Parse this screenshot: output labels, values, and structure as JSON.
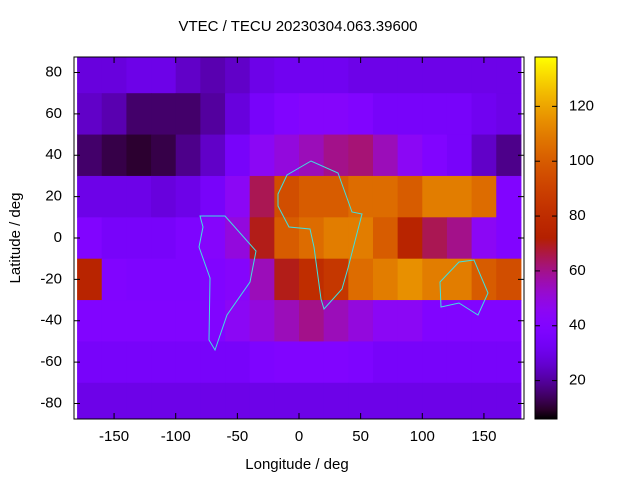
{
  "chart_data": {
    "type": "heatmap",
    "title": "VTEC / TECU 20230304.063.39600",
    "x_label": "Longitude / deg",
    "y_label": "Latitude / deg",
    "x": [
      -170,
      -150,
      -130,
      -110,
      -90,
      -70,
      -50,
      -30,
      -10,
      10,
      30,
      50,
      70,
      90,
      110,
      130,
      150,
      170
    ],
    "y": [
      80,
      60,
      40,
      20,
      0,
      -20,
      -40,
      -60,
      -80
    ],
    "z": [
      [
        28,
        28,
        30,
        30,
        25,
        22,
        25,
        30,
        32,
        32,
        32,
        30,
        30,
        30,
        30,
        30,
        30,
        30
      ],
      [
        25,
        22,
        15,
        15,
        15,
        20,
        28,
        35,
        40,
        42,
        42,
        40,
        35,
        35,
        35,
        35,
        32,
        30
      ],
      [
        15,
        12,
        10,
        12,
        18,
        25,
        35,
        45,
        50,
        55,
        60,
        62,
        55,
        45,
        40,
        35,
        25,
        18
      ],
      [
        30,
        30,
        30,
        28,
        30,
        35,
        45,
        65,
        95,
        100,
        100,
        105,
        105,
        100,
        110,
        110,
        105,
        40
      ],
      [
        40,
        35,
        35,
        35,
        38,
        42,
        50,
        70,
        100,
        105,
        110,
        110,
        100,
        75,
        65,
        60,
        45,
        40
      ],
      [
        75,
        40,
        38,
        38,
        38,
        40,
        42,
        55,
        70,
        80,
        85,
        105,
        110,
        115,
        110,
        110,
        100,
        95
      ],
      [
        40,
        40,
        40,
        40,
        40,
        40,
        45,
        50,
        55,
        60,
        55,
        50,
        45,
        45,
        40,
        40,
        40,
        40
      ],
      [
        35,
        35,
        35,
        35,
        35,
        35,
        35,
        38,
        40,
        40,
        40,
        38,
        35,
        35,
        35,
        35,
        35,
        35
      ],
      [
        30,
        30,
        30,
        30,
        30,
        30,
        30,
        30,
        30,
        30,
        30,
        30,
        30,
        30,
        30,
        30,
        30,
        30
      ]
    ],
    "xlim": [
      -182.5,
      182.5
    ],
    "ylim": [
      -87.5,
      87.5
    ],
    "clim": [
      6,
      138
    ],
    "xticks": [
      -150,
      -100,
      -50,
      0,
      50,
      100,
      150
    ],
    "yticks": [
      -80,
      -60,
      -40,
      -20,
      0,
      20,
      40,
      60,
      80
    ],
    "cticks": [
      20,
      40,
      60,
      80,
      100,
      120
    ],
    "colormap": "gnuplot"
  }
}
